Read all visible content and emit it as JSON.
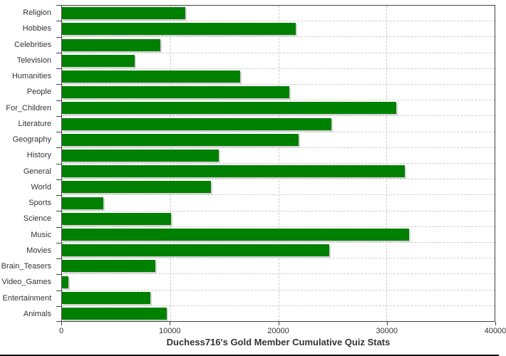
{
  "title": "Duchess716's Gold Member Cumulative Quiz Stats",
  "chart_data": {
    "type": "bar",
    "orientation": "horizontal",
    "title": "Duchess716's Gold Member Cumulative Quiz Stats",
    "categories": [
      "Religion",
      "Hobbies",
      "Celebrities",
      "Television",
      "Humanities",
      "People",
      "For_Children",
      "Literature",
      "Geography",
      "History",
      "General",
      "World",
      "Sports",
      "Science",
      "Music",
      "Movies",
      "Brain_Teasers",
      "Video_Games",
      "Entertainment",
      "Animals"
    ],
    "values": [
      11400,
      21600,
      9100,
      6700,
      16500,
      21000,
      30900,
      24900,
      21900,
      14500,
      31700,
      13800,
      3800,
      10050,
      32100,
      24700,
      8650,
      600,
      8200,
      9700
    ],
    "xlabel": "",
    "ylabel": "",
    "xlim": [
      0,
      40000
    ],
    "x_ticks": [
      "0",
      "10000",
      "20000",
      "30000",
      "40000"
    ],
    "x_tick_values": [
      0,
      10000,
      20000,
      30000,
      40000
    ],
    "grid": "dashed vertical at x ticks and horizontal at category boundaries",
    "legend_position": "none",
    "bar_color": "#008000",
    "shadow_color": "#d4d4d4",
    "grid_color": "#cccccc",
    "axis_color": "#424242",
    "text_color": "#333333",
    "background_color": "#ffffff"
  }
}
